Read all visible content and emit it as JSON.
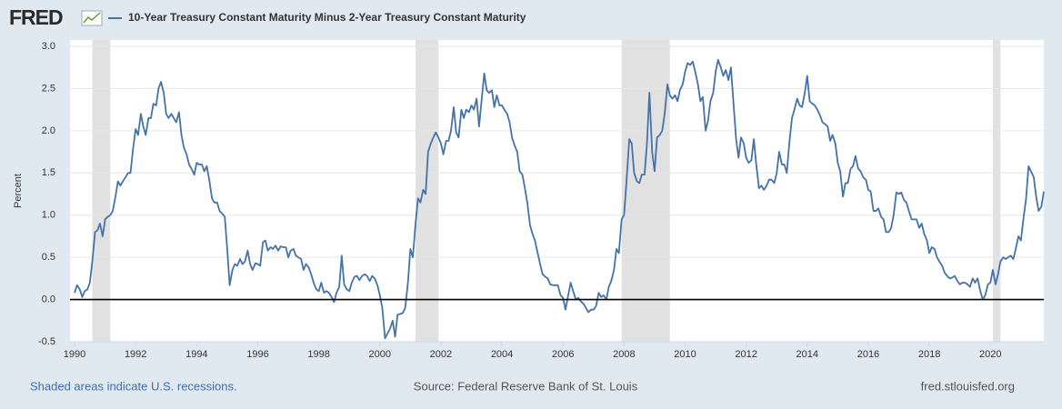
{
  "chart_data": {
    "type": "line",
    "logo": "FRED",
    "title": "10-Year Treasury Constant Maturity Minus 2-Year Treasury Constant Maturity",
    "y_label": "Percent",
    "footer_left": "Shaded areas indicate U.S. recessions.",
    "footer_center": "Source: Federal Reserve Bank of St. Louis",
    "footer_right": "fred.stlouisfed.org",
    "xlim": [
      1989.85,
      2021.75
    ],
    "xticks": [
      1990,
      1992,
      1994,
      1996,
      1998,
      2000,
      2002,
      2004,
      2006,
      2008,
      2010,
      2012,
      2014,
      2016,
      2018,
      2020
    ],
    "ylim": [
      -0.5,
      3.0
    ],
    "yticks": [
      {
        "value": 3.0,
        "label": "3.0"
      },
      2.5,
      {
        "value": 2.0,
        "label": "2.0"
      },
      1.5,
      {
        "value": 1.0,
        "label": "1.0"
      },
      0.5,
      {
        "value": 0.0,
        "label": "0.0"
      },
      -0.5
    ],
    "grid": true,
    "recessions": [
      [
        1990.58,
        1991.17
      ],
      [
        2001.17,
        2001.92
      ],
      [
        2007.92,
        2009.5
      ],
      [
        2020.08,
        2020.33
      ]
    ],
    "recession_color": "#e1e1e1",
    "x": [
      1990,
      1990.08,
      1990.17,
      1990.25,
      1990.33,
      1990.42,
      1990.5,
      1990.58,
      1990.67,
      1990.75,
      1990.83,
      1990.92,
      1991,
      1991.08,
      1991.17,
      1991.25,
      1991.33,
      1991.42,
      1991.5,
      1991.58,
      1991.67,
      1991.75,
      1991.83,
      1991.92,
      1992,
      1992.08,
      1992.17,
      1992.25,
      1992.33,
      1992.42,
      1992.5,
      1992.58,
      1992.67,
      1992.75,
      1992.83,
      1992.92,
      1993,
      1993.08,
      1993.17,
      1993.25,
      1993.33,
      1993.42,
      1993.5,
      1993.58,
      1993.67,
      1993.75,
      1993.83,
      1993.92,
      1994,
      1994.08,
      1994.17,
      1994.25,
      1994.33,
      1994.42,
      1994.5,
      1994.58,
      1994.67,
      1994.75,
      1994.83,
      1994.92,
      1995,
      1995.08,
      1995.17,
      1995.25,
      1995.33,
      1995.42,
      1995.5,
      1995.58,
      1995.67,
      1995.75,
      1995.83,
      1995.92,
      1996,
      1996.08,
      1996.17,
      1996.25,
      1996.33,
      1996.42,
      1996.5,
      1996.58,
      1996.67,
      1996.75,
      1996.83,
      1996.92,
      1997,
      1997.08,
      1997.17,
      1997.25,
      1997.33,
      1997.42,
      1997.5,
      1997.58,
      1997.67,
      1997.75,
      1997.83,
      1997.92,
      1998,
      1998.08,
      1998.17,
      1998.25,
      1998.33,
      1998.42,
      1998.5,
      1998.58,
      1998.67,
      1998.75,
      1998.83,
      1998.92,
      1999,
      1999.08,
      1999.17,
      1999.25,
      1999.33,
      1999.42,
      1999.5,
      1999.58,
      1999.67,
      1999.75,
      1999.83,
      1999.92,
      2000,
      2000.08,
      2000.17,
      2000.25,
      2000.33,
      2000.42,
      2000.5,
      2000.58,
      2000.67,
      2000.75,
      2000.83,
      2000.92,
      2001,
      2001.08,
      2001.17,
      2001.25,
      2001.33,
      2001.42,
      2001.5,
      2001.58,
      2001.67,
      2001.75,
      2001.83,
      2001.92,
      2002,
      2002.08,
      2002.17,
      2002.25,
      2002.33,
      2002.42,
      2002.5,
      2002.58,
      2002.67,
      2002.75,
      2002.83,
      2002.92,
      2003,
      2003.08,
      2003.17,
      2003.25,
      2003.33,
      2003.42,
      2003.5,
      2003.58,
      2003.67,
      2003.75,
      2003.83,
      2003.92,
      2004,
      2004.08,
      2004.17,
      2004.25,
      2004.33,
      2004.42,
      2004.5,
      2004.58,
      2004.67,
      2004.75,
      2004.83,
      2004.92,
      2005,
      2005.08,
      2005.17,
      2005.25,
      2005.33,
      2005.42,
      2005.5,
      2005.58,
      2005.67,
      2005.75,
      2005.83,
      2005.92,
      2006,
      2006.08,
      2006.17,
      2006.25,
      2006.33,
      2006.42,
      2006.5,
      2006.58,
      2006.67,
      2006.75,
      2006.83,
      2006.92,
      2007,
      2007.08,
      2007.17,
      2007.25,
      2007.33,
      2007.42,
      2007.5,
      2007.58,
      2007.67,
      2007.75,
      2007.83,
      2007.92,
      2008,
      2008.08,
      2008.17,
      2008.25,
      2008.33,
      2008.42,
      2008.5,
      2008.58,
      2008.67,
      2008.75,
      2008.83,
      2008.92,
      2009,
      2009.08,
      2009.17,
      2009.25,
      2009.33,
      2009.42,
      2009.5,
      2009.58,
      2009.67,
      2009.75,
      2009.83,
      2009.92,
      2010,
      2010.08,
      2010.17,
      2010.25,
      2010.33,
      2010.42,
      2010.5,
      2010.58,
      2010.67,
      2010.75,
      2010.83,
      2010.92,
      2011,
      2011.08,
      2011.17,
      2011.25,
      2011.33,
      2011.42,
      2011.5,
      2011.58,
      2011.67,
      2011.75,
      2011.83,
      2011.92,
      2012,
      2012.08,
      2012.17,
      2012.25,
      2012.33,
      2012.42,
      2012.5,
      2012.58,
      2012.67,
      2012.75,
      2012.83,
      2012.92,
      2013,
      2013.08,
      2013.17,
      2013.25,
      2013.33,
      2013.42,
      2013.5,
      2013.58,
      2013.67,
      2013.75,
      2013.83,
      2013.92,
      2014,
      2014.08,
      2014.17,
      2014.25,
      2014.33,
      2014.42,
      2014.5,
      2014.58,
      2014.67,
      2014.75,
      2014.83,
      2014.92,
      2015,
      2015.08,
      2015.17,
      2015.25,
      2015.33,
      2015.42,
      2015.5,
      2015.58,
      2015.67,
      2015.75,
      2015.83,
      2015.92,
      2016,
      2016.08,
      2016.17,
      2016.25,
      2016.33,
      2016.42,
      2016.5,
      2016.58,
      2016.67,
      2016.75,
      2016.83,
      2016.92,
      2017,
      2017.08,
      2017.17,
      2017.25,
      2017.33,
      2017.42,
      2017.5,
      2017.58,
      2017.67,
      2017.75,
      2017.83,
      2017.92,
      2018,
      2018.08,
      2018.17,
      2018.25,
      2018.33,
      2018.42,
      2018.5,
      2018.58,
      2018.67,
      2018.75,
      2018.83,
      2018.92,
      2019,
      2019.08,
      2019.17,
      2019.25,
      2019.33,
      2019.42,
      2019.5,
      2019.58,
      2019.67,
      2019.75,
      2019.83,
      2019.92,
      2020,
      2020.08,
      2020.17,
      2020.25,
      2020.33,
      2020.42,
      2020.5,
      2020.58,
      2020.67,
      2020.75,
      2020.83,
      2020.92,
      2021,
      2021.08,
      2021.17,
      2021.25,
      2021.33,
      2021.42,
      2021.5,
      2021.58,
      2021.67,
      2021.75
    ],
    "series": [
      {
        "name": "10-Year Treasury Constant Maturity Minus 2-Year Treasury Constant Maturity",
        "color": "#4572a7",
        "values": [
          0.08,
          0.17,
          0.12,
          0.03,
          0.1,
          0.12,
          0.2,
          0.45,
          0.8,
          0.82,
          0.9,
          0.75,
          0.95,
          0.98,
          1.0,
          1.05,
          1.2,
          1.4,
          1.35,
          1.4,
          1.45,
          1.5,
          1.5,
          1.8,
          2.02,
          1.95,
          2.2,
          2.05,
          1.95,
          2.15,
          2.15,
          2.32,
          2.3,
          2.5,
          2.58,
          2.45,
          2.2,
          2.15,
          2.2,
          2.15,
          2.1,
          2.22,
          1.95,
          1.8,
          1.72,
          1.6,
          1.55,
          1.48,
          1.62,
          1.6,
          1.6,
          1.52,
          1.58,
          1.4,
          1.2,
          1.15,
          1.15,
          1.05,
          1.02,
          0.98,
          0.6,
          0.17,
          0.35,
          0.42,
          0.4,
          0.48,
          0.42,
          0.45,
          0.58,
          0.42,
          0.35,
          0.43,
          0.42,
          0.4,
          0.68,
          0.7,
          0.58,
          0.62,
          0.6,
          0.64,
          0.58,
          0.63,
          0.62,
          0.62,
          0.5,
          0.58,
          0.6,
          0.52,
          0.5,
          0.48,
          0.35,
          0.42,
          0.38,
          0.3,
          0.2,
          0.12,
          0.1,
          0.2,
          0.08,
          0.1,
          0.08,
          0.03,
          -0.03,
          0.08,
          0.15,
          0.52,
          0.18,
          0.12,
          0.1,
          0.2,
          0.27,
          0.28,
          0.23,
          0.28,
          0.3,
          0.28,
          0.22,
          0.28,
          0.25,
          0.17,
          0.05,
          -0.1,
          -0.46,
          -0.4,
          -0.35,
          -0.25,
          -0.44,
          -0.18,
          -0.17,
          -0.16,
          -0.1,
          0.2,
          0.6,
          0.5,
          0.9,
          1.2,
          1.15,
          1.3,
          1.25,
          1.75,
          1.85,
          1.92,
          1.98,
          1.92,
          1.85,
          1.72,
          1.88,
          1.88,
          2.0,
          2.28,
          1.98,
          1.92,
          2.25,
          2.15,
          2.25,
          2.22,
          2.3,
          2.25,
          2.38,
          2.05,
          2.35,
          2.68,
          2.48,
          2.45,
          2.48,
          2.28,
          2.42,
          2.3,
          2.3,
          2.25,
          2.2,
          2.1,
          1.92,
          1.82,
          1.75,
          1.52,
          1.48,
          1.32,
          1.15,
          0.88,
          0.78,
          0.7,
          0.55,
          0.42,
          0.3,
          0.27,
          0.25,
          0.18,
          0.17,
          0.17,
          0.17,
          0.05,
          0.02,
          -0.12,
          0.05,
          0.2,
          0.1,
          0.0,
          0.02,
          -0.02,
          -0.05,
          -0.1,
          -0.15,
          -0.12,
          -0.12,
          -0.08,
          0.08,
          0.03,
          0.05,
          0.0,
          0.15,
          0.22,
          0.35,
          0.6,
          0.55,
          0.95,
          1.0,
          1.4,
          1.9,
          1.85,
          1.5,
          1.4,
          1.38,
          1.48,
          1.48,
          1.85,
          2.45,
          1.75,
          1.52,
          1.92,
          1.95,
          2.0,
          2.2,
          2.55,
          2.42,
          2.38,
          2.42,
          2.35,
          2.48,
          2.55,
          2.7,
          2.8,
          2.78,
          2.82,
          2.7,
          2.55,
          2.35,
          2.4,
          2.0,
          2.12,
          2.35,
          2.45,
          2.7,
          2.84,
          2.75,
          2.65,
          2.72,
          2.6,
          2.75,
          2.35,
          1.9,
          1.68,
          1.92,
          1.85,
          1.68,
          1.62,
          1.65,
          1.9,
          1.6,
          1.32,
          1.35,
          1.3,
          1.35,
          1.42,
          1.42,
          1.38,
          1.5,
          1.75,
          1.6,
          1.6,
          1.5,
          1.88,
          2.15,
          2.25,
          2.38,
          2.3,
          2.28,
          2.45,
          2.65,
          2.35,
          2.32,
          2.3,
          2.25,
          2.18,
          2.1,
          2.08,
          2.05,
          1.88,
          1.95,
          1.85,
          1.62,
          1.52,
          1.22,
          1.38,
          1.38,
          1.55,
          1.58,
          1.7,
          1.55,
          1.52,
          1.45,
          1.42,
          1.3,
          1.28,
          1.05,
          1.05,
          1.08,
          0.98,
          0.95,
          0.8,
          0.8,
          0.85,
          1.0,
          1.27,
          1.25,
          1.27,
          1.18,
          1.15,
          1.05,
          0.95,
          0.95,
          0.95,
          0.85,
          0.9,
          0.78,
          0.7,
          0.55,
          0.62,
          0.6,
          0.5,
          0.45,
          0.4,
          0.32,
          0.28,
          0.25,
          0.26,
          0.28,
          0.22,
          0.18,
          0.2,
          0.2,
          0.18,
          0.15,
          0.25,
          0.2,
          0.25,
          0.1,
          0.0,
          0.05,
          0.18,
          0.2,
          0.35,
          0.18,
          0.3,
          0.45,
          0.5,
          0.48,
          0.5,
          0.52,
          0.48,
          0.6,
          0.75,
          0.7,
          0.95,
          1.2,
          1.58,
          1.52,
          1.45,
          1.22,
          1.05,
          1.1,
          1.28
        ]
      }
    ]
  }
}
